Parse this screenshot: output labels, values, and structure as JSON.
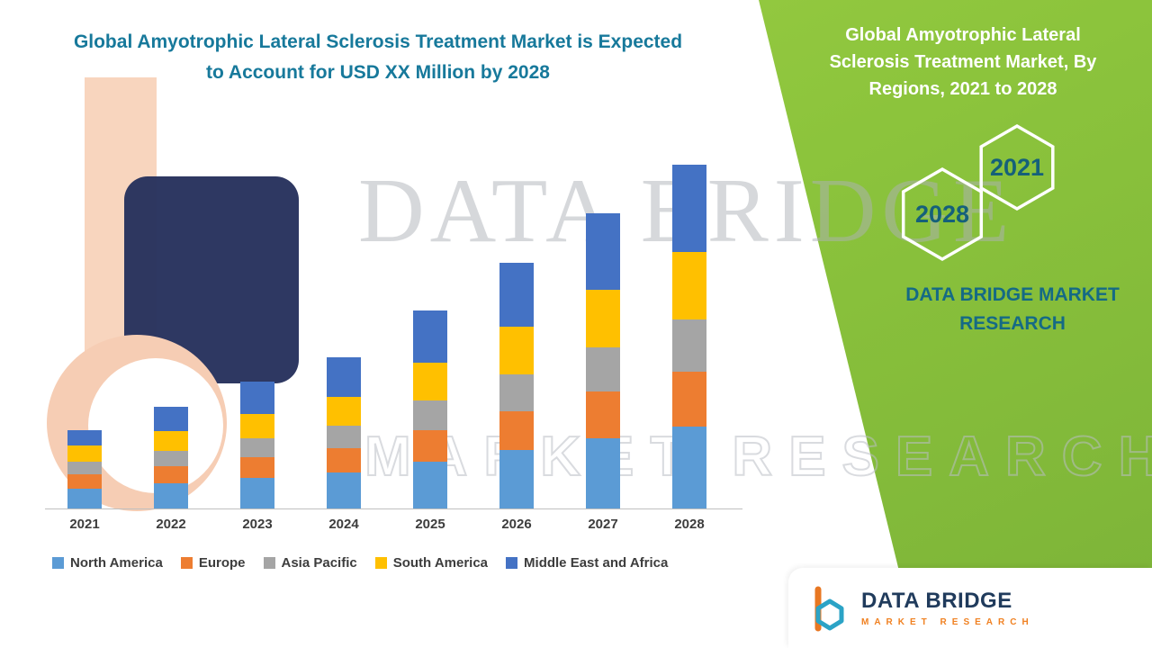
{
  "main_title": {
    "line1": "Global Amyotrophic Lateral Sclerosis Treatment Market is Expected",
    "line2": "to Account for USD XX Million by 2028",
    "color": "#17799b"
  },
  "right_panel": {
    "title": "Global Amyotrophic Lateral Sclerosis Treatment Market, By Regions, 2021 to 2028",
    "hexagons": [
      {
        "year": "2028"
      },
      {
        "year": "2021"
      }
    ],
    "brand_text": "DATA BRIDGE MARKET RESEARCH",
    "green_top": "#9ecf45",
    "green_bottom": "#7cb338",
    "text_color": "#ffffff",
    "accent_text_color": "#156a85"
  },
  "watermark": {
    "line1": "DATA BRIDGE",
    "line2": "MARKET RESEARCH"
  },
  "logo_card": {
    "brand": "DATA BRIDGE",
    "subtitle": "MARKET RESEARCH",
    "brand_color": "#203b5c",
    "subtitle_color": "#f08122"
  },
  "chart_data": {
    "type": "bar",
    "stacked": true,
    "title": "Global Amyotrophic Lateral Sclerosis Treatment Market is Expected to Account for USD XX Million by 2028",
    "categories": [
      "2021",
      "2022",
      "2023",
      "2024",
      "2025",
      "2026",
      "2027",
      "2028"
    ],
    "series": [
      {
        "name": "North America",
        "color": "#5B9BD5",
        "values": [
          2.2,
          2.8,
          3.4,
          4.0,
          5.2,
          6.5,
          7.8,
          9.1
        ]
      },
      {
        "name": "Europe",
        "color": "#ED7D31",
        "values": [
          1.6,
          1.9,
          2.3,
          2.7,
          3.5,
          4.3,
          5.2,
          6.1
        ]
      },
      {
        "name": "Asia Pacific",
        "color": "#A5A5A5",
        "values": [
          1.4,
          1.7,
          2.1,
          2.5,
          3.3,
          4.1,
          4.9,
          5.8
        ]
      },
      {
        "name": "South America",
        "color": "#FFC000",
        "values": [
          1.8,
          2.2,
          2.7,
          3.2,
          4.2,
          5.3,
          6.4,
          7.5
        ]
      },
      {
        "name": "Middle East and Africa",
        "color": "#4472C4",
        "values": [
          1.7,
          2.7,
          3.6,
          4.4,
          5.8,
          7.1,
          8.5,
          9.7
        ]
      }
    ],
    "note": "No y-axis scale shown in image; values are relative estimates read from bar heights",
    "xlabel": "",
    "ylabel": "",
    "y_axis_visible": false,
    "grid": false,
    "legend_position": "bottom"
  }
}
